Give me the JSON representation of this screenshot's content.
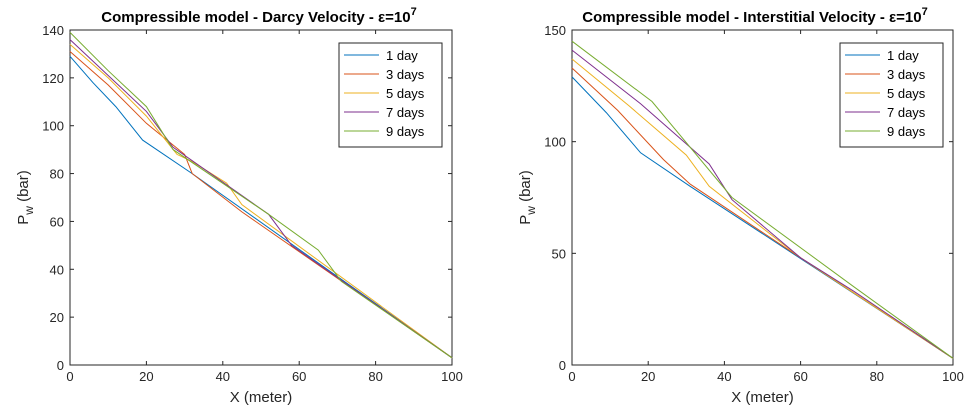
{
  "colors": {
    "1 day": "#0072BD",
    "3 days": "#D95319",
    "5 days": "#EDB120",
    "7 days": "#7E2F8E",
    "9 days": "#77AC30"
  },
  "chart_data": [
    {
      "type": "line",
      "title": "Compressible model - Darcy Velocity - ε=10",
      "title_sup": "7",
      "xlabel": "X (meter)",
      "ylabel_main": "P",
      "ylabel_sub": "w",
      "ylabel_rest": " (bar)",
      "xlim": [
        0,
        100
      ],
      "ylim": [
        0,
        140
      ],
      "xticks": [
        0,
        20,
        40,
        60,
        80,
        100
      ],
      "yticks": [
        0,
        20,
        40,
        60,
        80,
        100,
        120,
        140
      ],
      "grid": false,
      "legend_position": "top-right",
      "series": [
        {
          "name": "1 day",
          "x": [
            0,
            6,
            12,
            19,
            32,
            100
          ],
          "y": [
            129,
            118,
            108,
            94,
            80,
            3
          ]
        },
        {
          "name": "3 days",
          "x": [
            0,
            10,
            20,
            30,
            32,
            45,
            100
          ],
          "y": [
            131,
            117,
            101,
            88,
            80,
            64,
            3
          ]
        },
        {
          "name": "5 days",
          "x": [
            0,
            10,
            20,
            28,
            32,
            41,
            45,
            100
          ],
          "y": [
            134,
            120,
            104,
            88,
            85,
            76,
            67,
            3
          ]
        },
        {
          "name": "7 days",
          "x": [
            0,
            10,
            20,
            27,
            52,
            58,
            100
          ],
          "y": [
            136,
            121,
            106,
            91,
            63,
            50,
            3
          ]
        },
        {
          "name": "9 days",
          "x": [
            0,
            10,
            20,
            27,
            52,
            65,
            71,
            100
          ],
          "y": [
            139,
            123,
            108,
            90,
            63,
            48,
            35,
            3
          ]
        }
      ]
    },
    {
      "type": "line",
      "title": "Compressible model - Interstitial Velocity - ε=10",
      "title_sup": "7",
      "xlabel": "X (meter)",
      "ylabel_main": "P",
      "ylabel_sub": "w",
      "ylabel_rest": " (bar)",
      "xlim": [
        0,
        100
      ],
      "ylim": [
        0,
        150
      ],
      "xticks": [
        0,
        20,
        40,
        60,
        80,
        100
      ],
      "yticks": [
        0,
        50,
        100,
        150
      ],
      "grid": false,
      "legend_position": "top-right",
      "series": [
        {
          "name": "1 day",
          "x": [
            0,
            9,
            18,
            31,
            100
          ],
          "y": [
            129,
            113,
            95,
            80,
            3
          ]
        },
        {
          "name": "3 days",
          "x": [
            0,
            12,
            24,
            31,
            60,
            100
          ],
          "y": [
            133,
            114,
            92,
            81,
            48,
            3
          ]
        },
        {
          "name": "5 days",
          "x": [
            0,
            15,
            30,
            36,
            60,
            100
          ],
          "y": [
            137,
            116,
            94,
            80,
            48,
            3
          ]
        },
        {
          "name": "7 days",
          "x": [
            0,
            18,
            36,
            42,
            60,
            74,
            100
          ],
          "y": [
            141,
            117,
            90,
            74,
            48,
            33,
            3
          ]
        },
        {
          "name": "9 days",
          "x": [
            0,
            21,
            42,
            74,
            100
          ],
          "y": [
            145,
            118,
            75,
            35,
            3
          ]
        }
      ]
    }
  ]
}
